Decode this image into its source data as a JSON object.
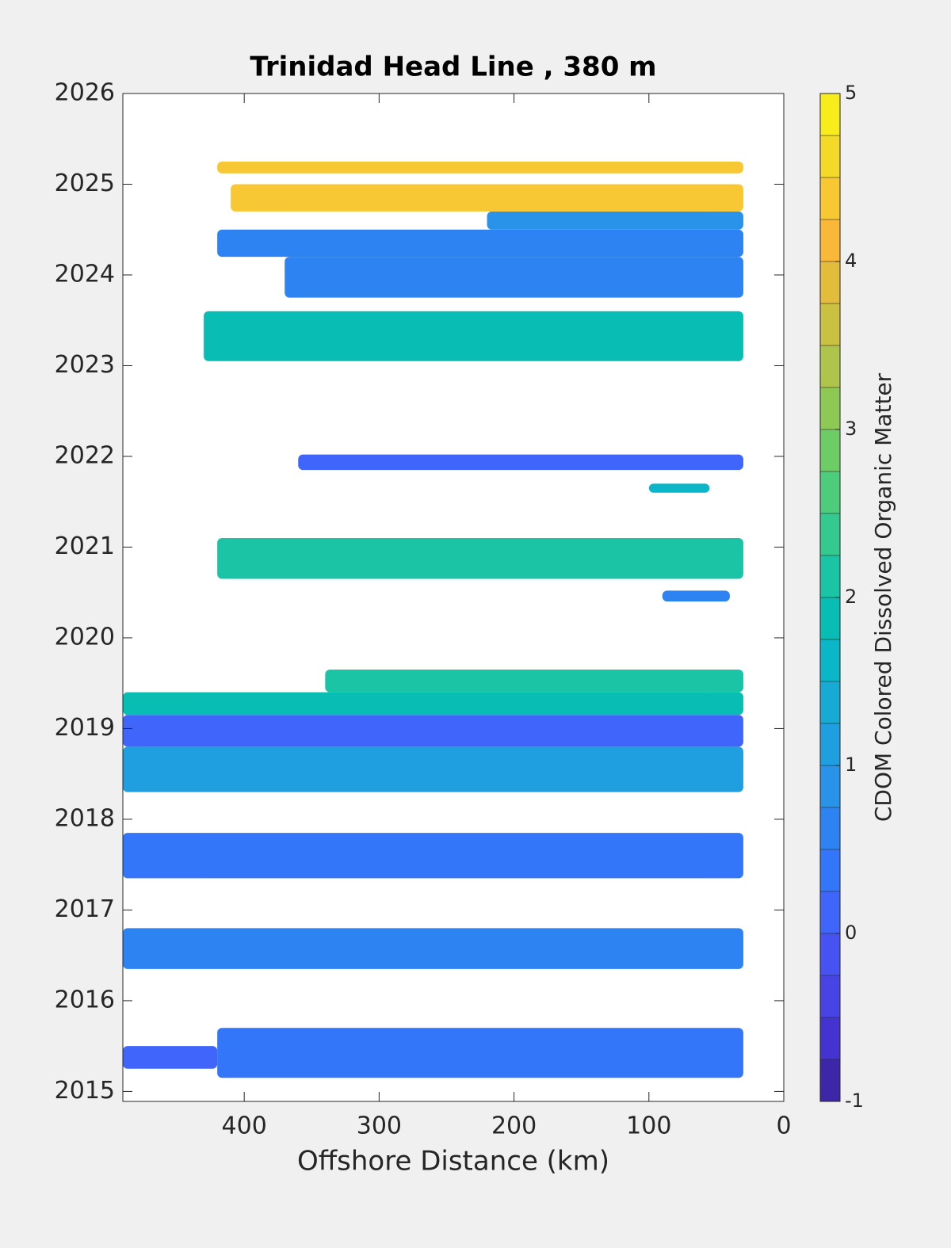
{
  "chart_data": {
    "type": "contour",
    "title": "Trinidad Head Line , 380 m",
    "xlabel": "Offshore Distance (km)",
    "colorbar_label": "CDOM Colored Dissolved Organic Matter",
    "xlim": [
      490,
      0
    ],
    "xticks": [
      400,
      300,
      200,
      100,
      0
    ],
    "ylim": [
      2014.89,
      2026
    ],
    "yticks": [
      2015,
      2016,
      2017,
      2018,
      2019,
      2020,
      2021,
      2022,
      2023,
      2024,
      2025,
      2026
    ],
    "clim": [
      -1,
      5
    ],
    "cticks": [
      -1,
      0,
      1,
      2,
      3,
      4,
      5
    ],
    "colormap": [
      "#3d26a8",
      "#4433d0",
      "#4743e4",
      "#4653f2",
      "#4065fb",
      "#3476fa",
      "#2e83f2",
      "#2992e9",
      "#1f9fe0",
      "#16aad5",
      "#0ab6c8",
      "#08bdb4",
      "#1bc4a4",
      "#33c98f",
      "#4dcc7c",
      "#6dcc66",
      "#8ec956",
      "#aec44b",
      "#cac042",
      "#e2bc3b",
      "#f9b83a",
      "#f7c734",
      "#f5d928",
      "#f8ec1c"
    ],
    "patches": [
      {
        "x": [
          420,
          30
        ],
        "y": [
          2015.15,
          2015.7
        ],
        "value": 0.3
      },
      {
        "x": [
          490,
          420
        ],
        "y": [
          2015.25,
          2015.5
        ],
        "value": 0.1
      },
      {
        "x": [
          490,
          30
        ],
        "y": [
          2016.35,
          2016.8
        ],
        "value": 0.7
      },
      {
        "x": [
          490,
          30
        ],
        "y": [
          2017.35,
          2017.85
        ],
        "value": 0.4
      },
      {
        "x": [
          490,
          30
        ],
        "y": [
          2018.3,
          2018.8
        ],
        "value": 1.1
      },
      {
        "x": [
          490,
          30
        ],
        "y": [
          2018.8,
          2019.15
        ],
        "value": 0.0
      },
      {
        "x": [
          490,
          30
        ],
        "y": [
          2019.15,
          2019.4
        ],
        "value": 1.9
      },
      {
        "x": [
          340,
          30
        ],
        "y": [
          2019.4,
          2019.65
        ],
        "value": 2.1
      },
      {
        "x": [
          90,
          40
        ],
        "y": [
          2020.4,
          2020.52
        ],
        "value": 0.6
      },
      {
        "x": [
          420,
          30
        ],
        "y": [
          2020.65,
          2021.1
        ],
        "value": 2.0
      },
      {
        "x": [
          100,
          55
        ],
        "y": [
          2021.6,
          2021.7
        ],
        "value": 1.5
      },
      {
        "x": [
          360,
          30
        ],
        "y": [
          2021.85,
          2022.02
        ],
        "value": 0.2
      },
      {
        "x": [
          430,
          30
        ],
        "y": [
          2023.05,
          2023.6
        ],
        "value": 1.9
      },
      {
        "x": [
          370,
          30
        ],
        "y": [
          2023.75,
          2024.2
        ],
        "value": 0.6
      },
      {
        "x": [
          420,
          30
        ],
        "y": [
          2024.2,
          2024.5
        ],
        "value": 0.6
      },
      {
        "x": [
          220,
          30
        ],
        "y": [
          2024.5,
          2024.7
        ],
        "value": 0.8
      },
      {
        "x": [
          410,
          30
        ],
        "y": [
          2024.7,
          2025.0
        ],
        "value": 4.4
      },
      {
        "x": [
          420,
          30
        ],
        "y": [
          2025.12,
          2025.25
        ],
        "value": 4.3
      }
    ]
  }
}
